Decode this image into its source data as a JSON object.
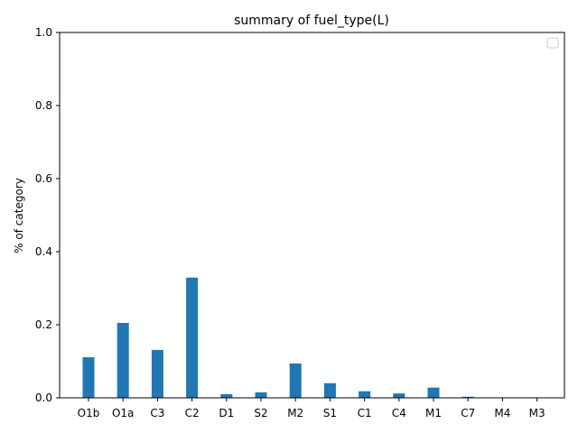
{
  "chart_data": {
    "type": "bar",
    "title": "summary of fuel_type(L)",
    "xlabel": "",
    "ylabel": "% of category",
    "categories": [
      "O1b",
      "O1a",
      "C3",
      "C2",
      "D1",
      "S2",
      "M2",
      "S1",
      "C1",
      "C4",
      "M1",
      "C7",
      "M4",
      "M3"
    ],
    "values": [
      0.111,
      0.205,
      0.131,
      0.329,
      0.01,
      0.015,
      0.094,
      0.04,
      0.018,
      0.012,
      0.028,
      0.003,
      0.0003,
      0.0001
    ],
    "ylim": [
      0,
      1.0
    ],
    "yticks": [
      "0.0",
      "0.2",
      "0.4",
      "0.6",
      "0.8",
      "1.0"
    ],
    "ytick_values": [
      0,
      0.2,
      0.4,
      0.6,
      0.8,
      1.0
    ],
    "grid": false,
    "legend": {
      "placement": "top-right",
      "entries": []
    },
    "colors": {
      "bar": "#1f77b4",
      "axis": "#000000",
      "background": "#ffffff",
      "legend_border": "#cccccc"
    }
  }
}
